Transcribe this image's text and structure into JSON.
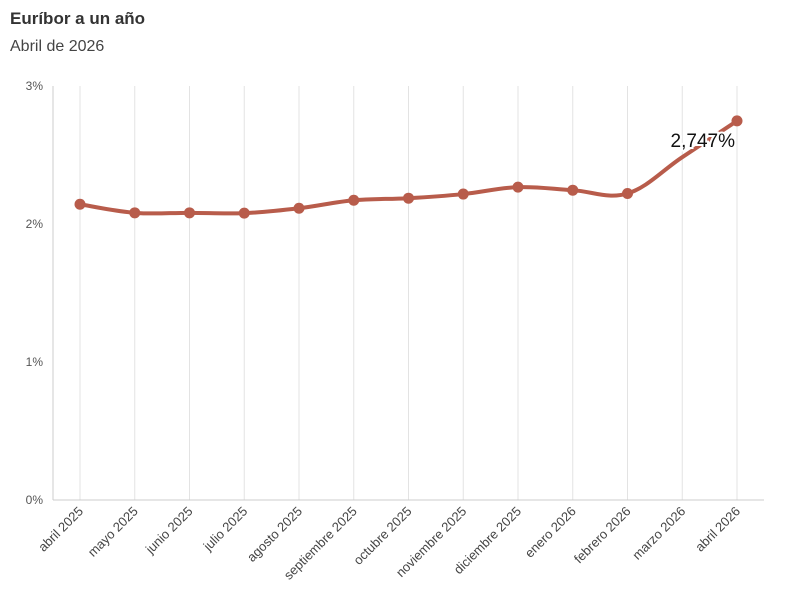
{
  "header": {
    "title": "Euríbor a un año",
    "subtitle": "Abril de 2026"
  },
  "colors": {
    "line": "#b85c4b",
    "grid": "#e3e3e3",
    "axis": "#cccccc"
  },
  "chart_data": {
    "type": "line",
    "title": "Euríbor a un año",
    "subtitle": "Abril de 2026",
    "xlabel": "",
    "ylabel": "",
    "categories": [
      "abril 2025",
      "mayo 2025",
      "junio 2025",
      "julio 2025",
      "agosto 2025",
      "septiembre 2025",
      "octubre 2025",
      "noviembre 2025",
      "diciembre 2025",
      "enero 2026",
      "febrero 2026",
      "marzo 2026",
      "abril 2026"
    ],
    "series": [
      {
        "values": [
          2.143,
          2.081,
          2.081,
          2.079,
          2.114,
          2.172,
          2.187,
          2.217,
          2.267,
          2.245,
          2.221,
          null,
          2.747
        ]
      }
    ],
    "ylim": [
      0,
      3
    ],
    "yticks": [
      0,
      1,
      2,
      3
    ],
    "ytick_labels": [
      "0%",
      "1%",
      "2%",
      "3%"
    ],
    "annotation": {
      "category": "abril 2026",
      "text": "2,747%"
    },
    "grid": "vertical"
  }
}
